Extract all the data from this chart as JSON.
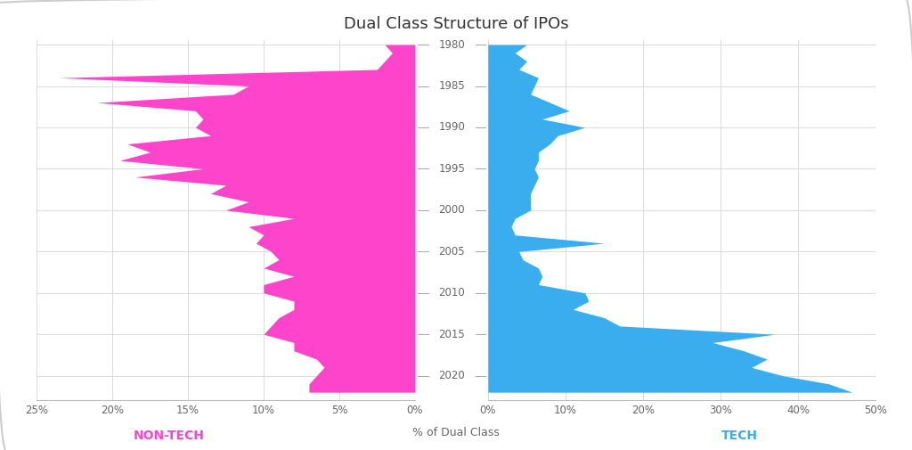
{
  "title": "Dual Class Structure of IPOs",
  "xlabel": "% of Dual Class",
  "left_label": "NON-TECH",
  "right_label": "TECH",
  "left_color": "#FF44CC",
  "right_color": "#3AADEE",
  "background_color": "#FFFFFF",
  "border_color": "#CCCCCC",
  "years": [
    1980,
    1981,
    1982,
    1983,
    1984,
    1985,
    1986,
    1987,
    1988,
    1989,
    1990,
    1991,
    1992,
    1993,
    1994,
    1995,
    1996,
    1997,
    1998,
    1999,
    2000,
    2001,
    2002,
    2003,
    2004,
    2005,
    2006,
    2007,
    2008,
    2009,
    2010,
    2011,
    2012,
    2013,
    2014,
    2015,
    2016,
    2017,
    2018,
    2019,
    2020,
    2021,
    2022
  ],
  "nontech": [
    2.0,
    1.5,
    2.0,
    2.5,
    23.5,
    11.0,
    12.0,
    21.0,
    14.5,
    14.0,
    14.5,
    13.5,
    19.0,
    17.5,
    19.5,
    14.0,
    18.5,
    12.5,
    13.5,
    11.0,
    12.5,
    8.0,
    11.0,
    10.0,
    10.5,
    9.5,
    9.0,
    10.0,
    8.0,
    10.0,
    10.0,
    8.0,
    8.0,
    9.0,
    9.5,
    10.0,
    8.0,
    8.0,
    6.5,
    6.0,
    6.5,
    7.0,
    7.0
  ],
  "tech": [
    5.0,
    3.5,
    5.0,
    4.0,
    6.5,
    6.0,
    5.5,
    8.0,
    10.5,
    7.0,
    12.5,
    9.0,
    8.0,
    6.5,
    6.5,
    6.0,
    6.5,
    6.0,
    5.5,
    5.5,
    5.5,
    3.5,
    3.0,
    3.5,
    15.0,
    4.0,
    4.5,
    6.5,
    7.0,
    6.5,
    12.5,
    13.0,
    11.0,
    15.0,
    17.0,
    37.0,
    29.0,
    33.0,
    36.0,
    34.0,
    38.0,
    44.0,
    47.0
  ],
  "left_xlim": [
    0,
    25
  ],
  "right_xlim": [
    0,
    50
  ],
  "yticks": [
    1980,
    1985,
    1990,
    1995,
    2000,
    2005,
    2010,
    2015,
    2020
  ],
  "left_xticks": [
    0,
    5,
    10,
    15,
    20,
    25
  ],
  "right_xticks": [
    0,
    10,
    20,
    30,
    40,
    50
  ],
  "ymin": 1979.5,
  "ymax": 2023.0
}
